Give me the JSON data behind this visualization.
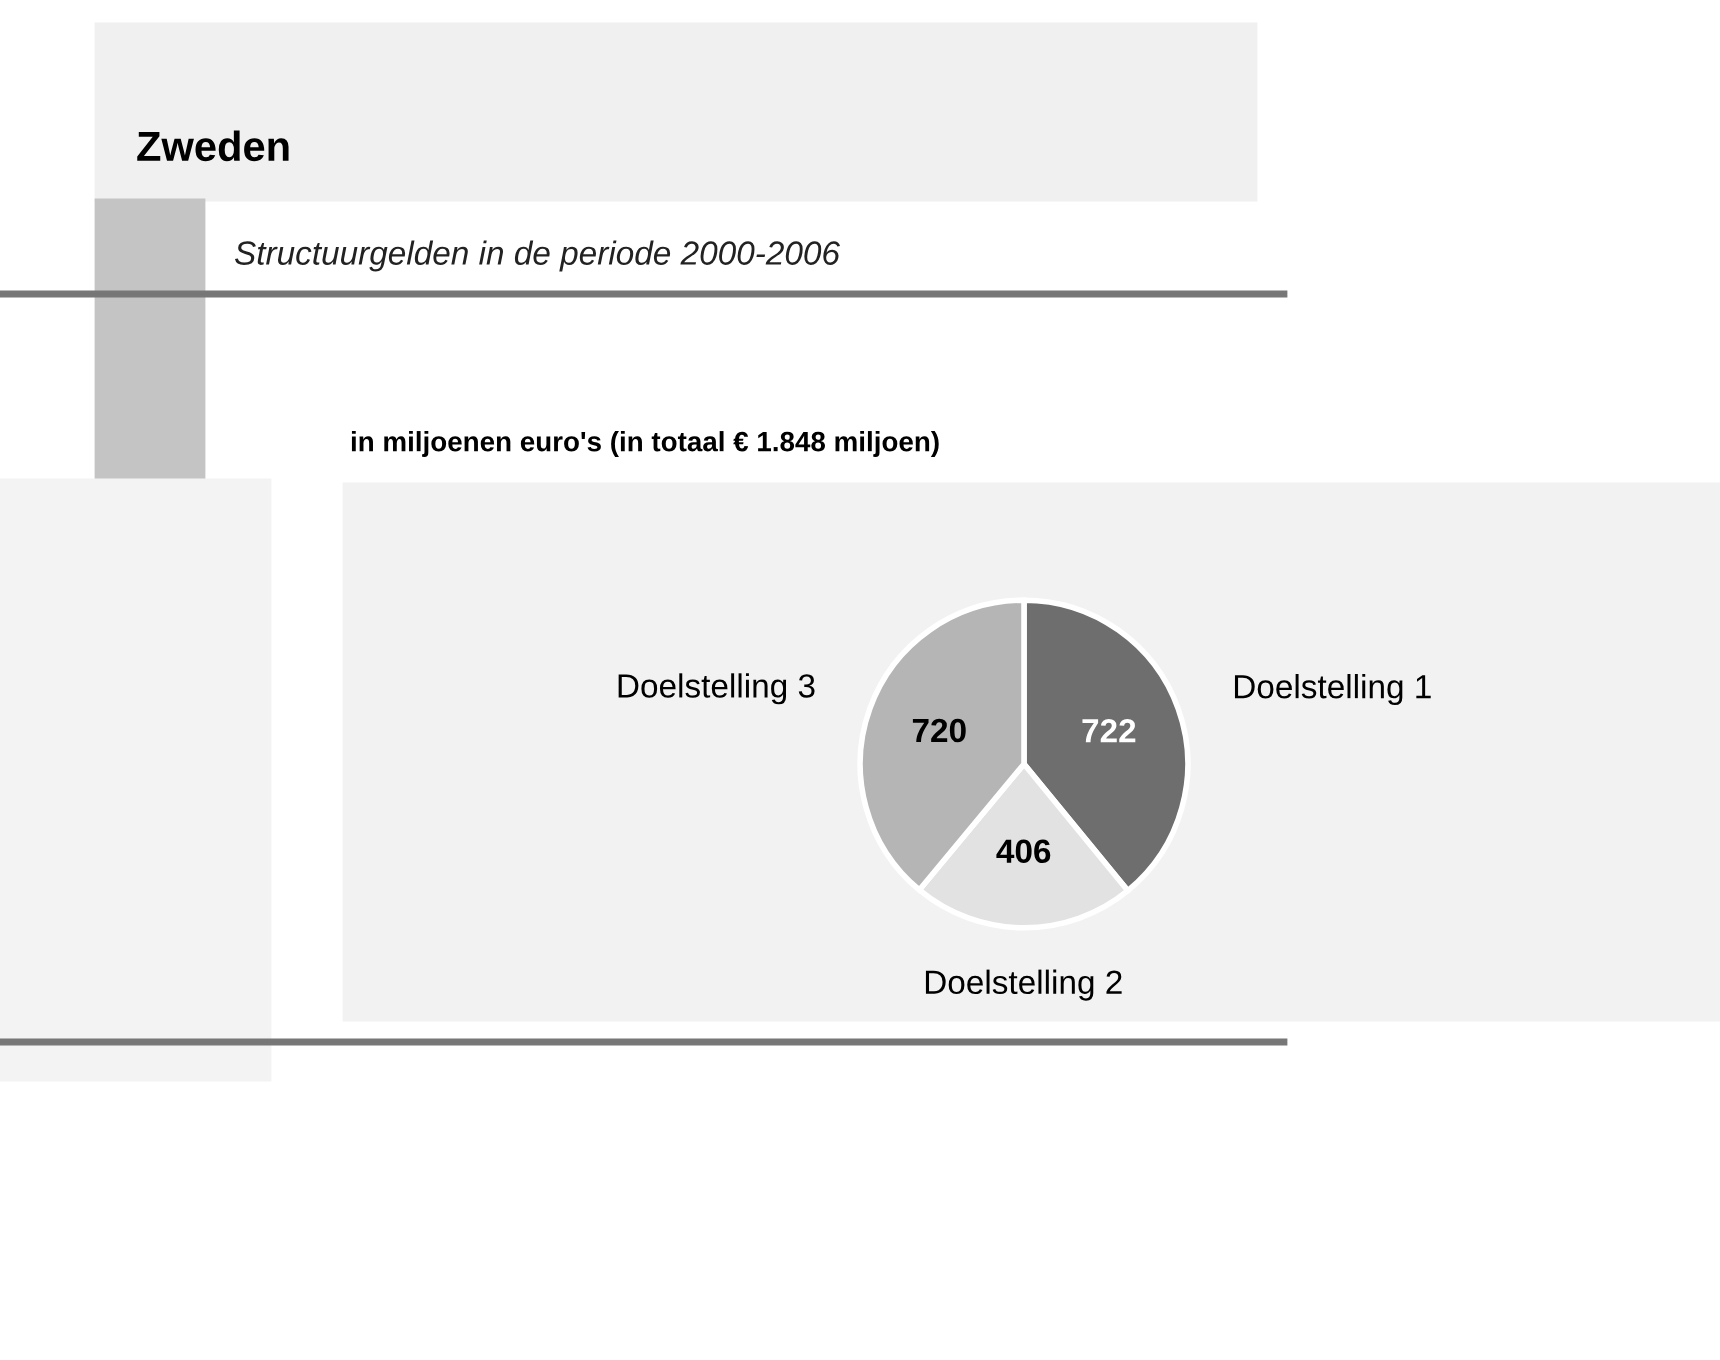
{
  "chart_data": {
    "type": "pie",
    "title": "Zweden",
    "subtitle": "Structuurgelden in de periode 2000-2006",
    "annotations": [
      "in miljoenen euro's (in totaal € 1.848 miljoen)"
    ],
    "categories": [
      "Doelstelling 1",
      "Doelstelling 2",
      "Doelstelling 3"
    ],
    "values": [
      722,
      406,
      720
    ],
    "colors": [
      "#6e6e6e",
      "#e2e2e2",
      "#b5b5b5"
    ],
    "data_labels": true
  }
}
